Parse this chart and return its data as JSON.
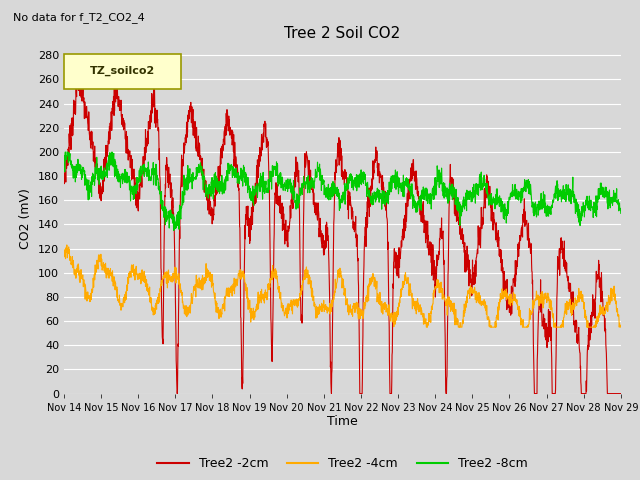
{
  "title": "Tree 2 Soil CO2",
  "subtitle": "No data for f_T2_CO2_4",
  "ylabel": "CO2 (mV)",
  "xlabel": "Time",
  "legend_label": "TZ_soilco2",
  "series_labels": [
    "Tree2 -2cm",
    "Tree2 -4cm",
    "Tree2 -8cm"
  ],
  "colors": [
    "#cc0000",
    "#ffaa00",
    "#00cc00"
  ],
  "ylim": [
    0,
    290
  ],
  "yticks": [
    0,
    20,
    40,
    60,
    80,
    100,
    120,
    140,
    160,
    180,
    200,
    220,
    240,
    260,
    280
  ],
  "xtick_labels": [
    "Nov 14",
    "Nov 15",
    "Nov 16",
    "Nov 17",
    "Nov 18",
    "Nov 19",
    "Nov 20",
    "Nov 21",
    "Nov 22",
    "Nov 23",
    "Nov 24",
    "Nov 25",
    "Nov 26",
    "Nov 27",
    "Nov 28",
    "Nov 29"
  ],
  "bg_color": "#d8d8d8",
  "plot_bg_color": "#d8d8d8",
  "grid_color": "#ffffff",
  "linewidth": 0.8
}
